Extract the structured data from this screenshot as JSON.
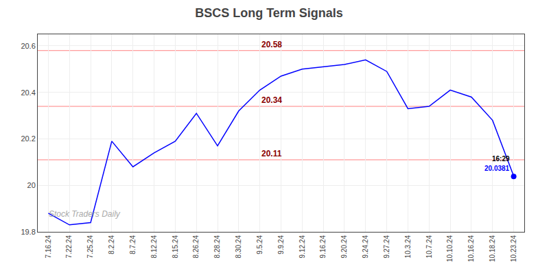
{
  "chart_data": {
    "type": "line",
    "title": "BSCS Long Term Signals",
    "categories": [
      "7.16.24",
      "7.22.24",
      "7.25.24",
      "8.2.24",
      "8.7.24",
      "8.12.24",
      "8.15.24",
      "8.26.24",
      "8.28.24",
      "8.30.24",
      "9.5.24",
      "9.9.24",
      "9.12.24",
      "9.16.24",
      "9.20.24",
      "9.24.24",
      "9.27.24",
      "10.3.24",
      "10.7.24",
      "10.10.24",
      "10.16.24",
      "10.18.24",
      "10.23.24"
    ],
    "values": [
      19.88,
      19.83,
      19.84,
      20.19,
      20.08,
      20.14,
      20.19,
      20.31,
      20.17,
      20.32,
      20.41,
      20.47,
      20.5,
      20.51,
      20.52,
      20.54,
      20.49,
      20.33,
      20.34,
      20.41,
      20.38,
      20.28,
      20.04
    ],
    "color": "blue",
    "ylim": [
      19.8,
      20.65
    ],
    "yticks": [
      19.8,
      20.0,
      20.2,
      20.4,
      20.6
    ],
    "grid": true,
    "reference_lines": [
      {
        "value": 20.58,
        "label": "20.58"
      },
      {
        "value": 20.34,
        "label": "20.34"
      },
      {
        "value": 20.11,
        "label": "20.11"
      }
    ],
    "reference_line_color": "#ff8080",
    "reference_label_color": "darkred",
    "last_point": {
      "category": "10.23.24",
      "value": 20.0381,
      "time_label": "16:29",
      "value_label": "20.0381"
    },
    "watermark": "Stock Traders Daily",
    "watermark_color": "#aaaaaa"
  }
}
